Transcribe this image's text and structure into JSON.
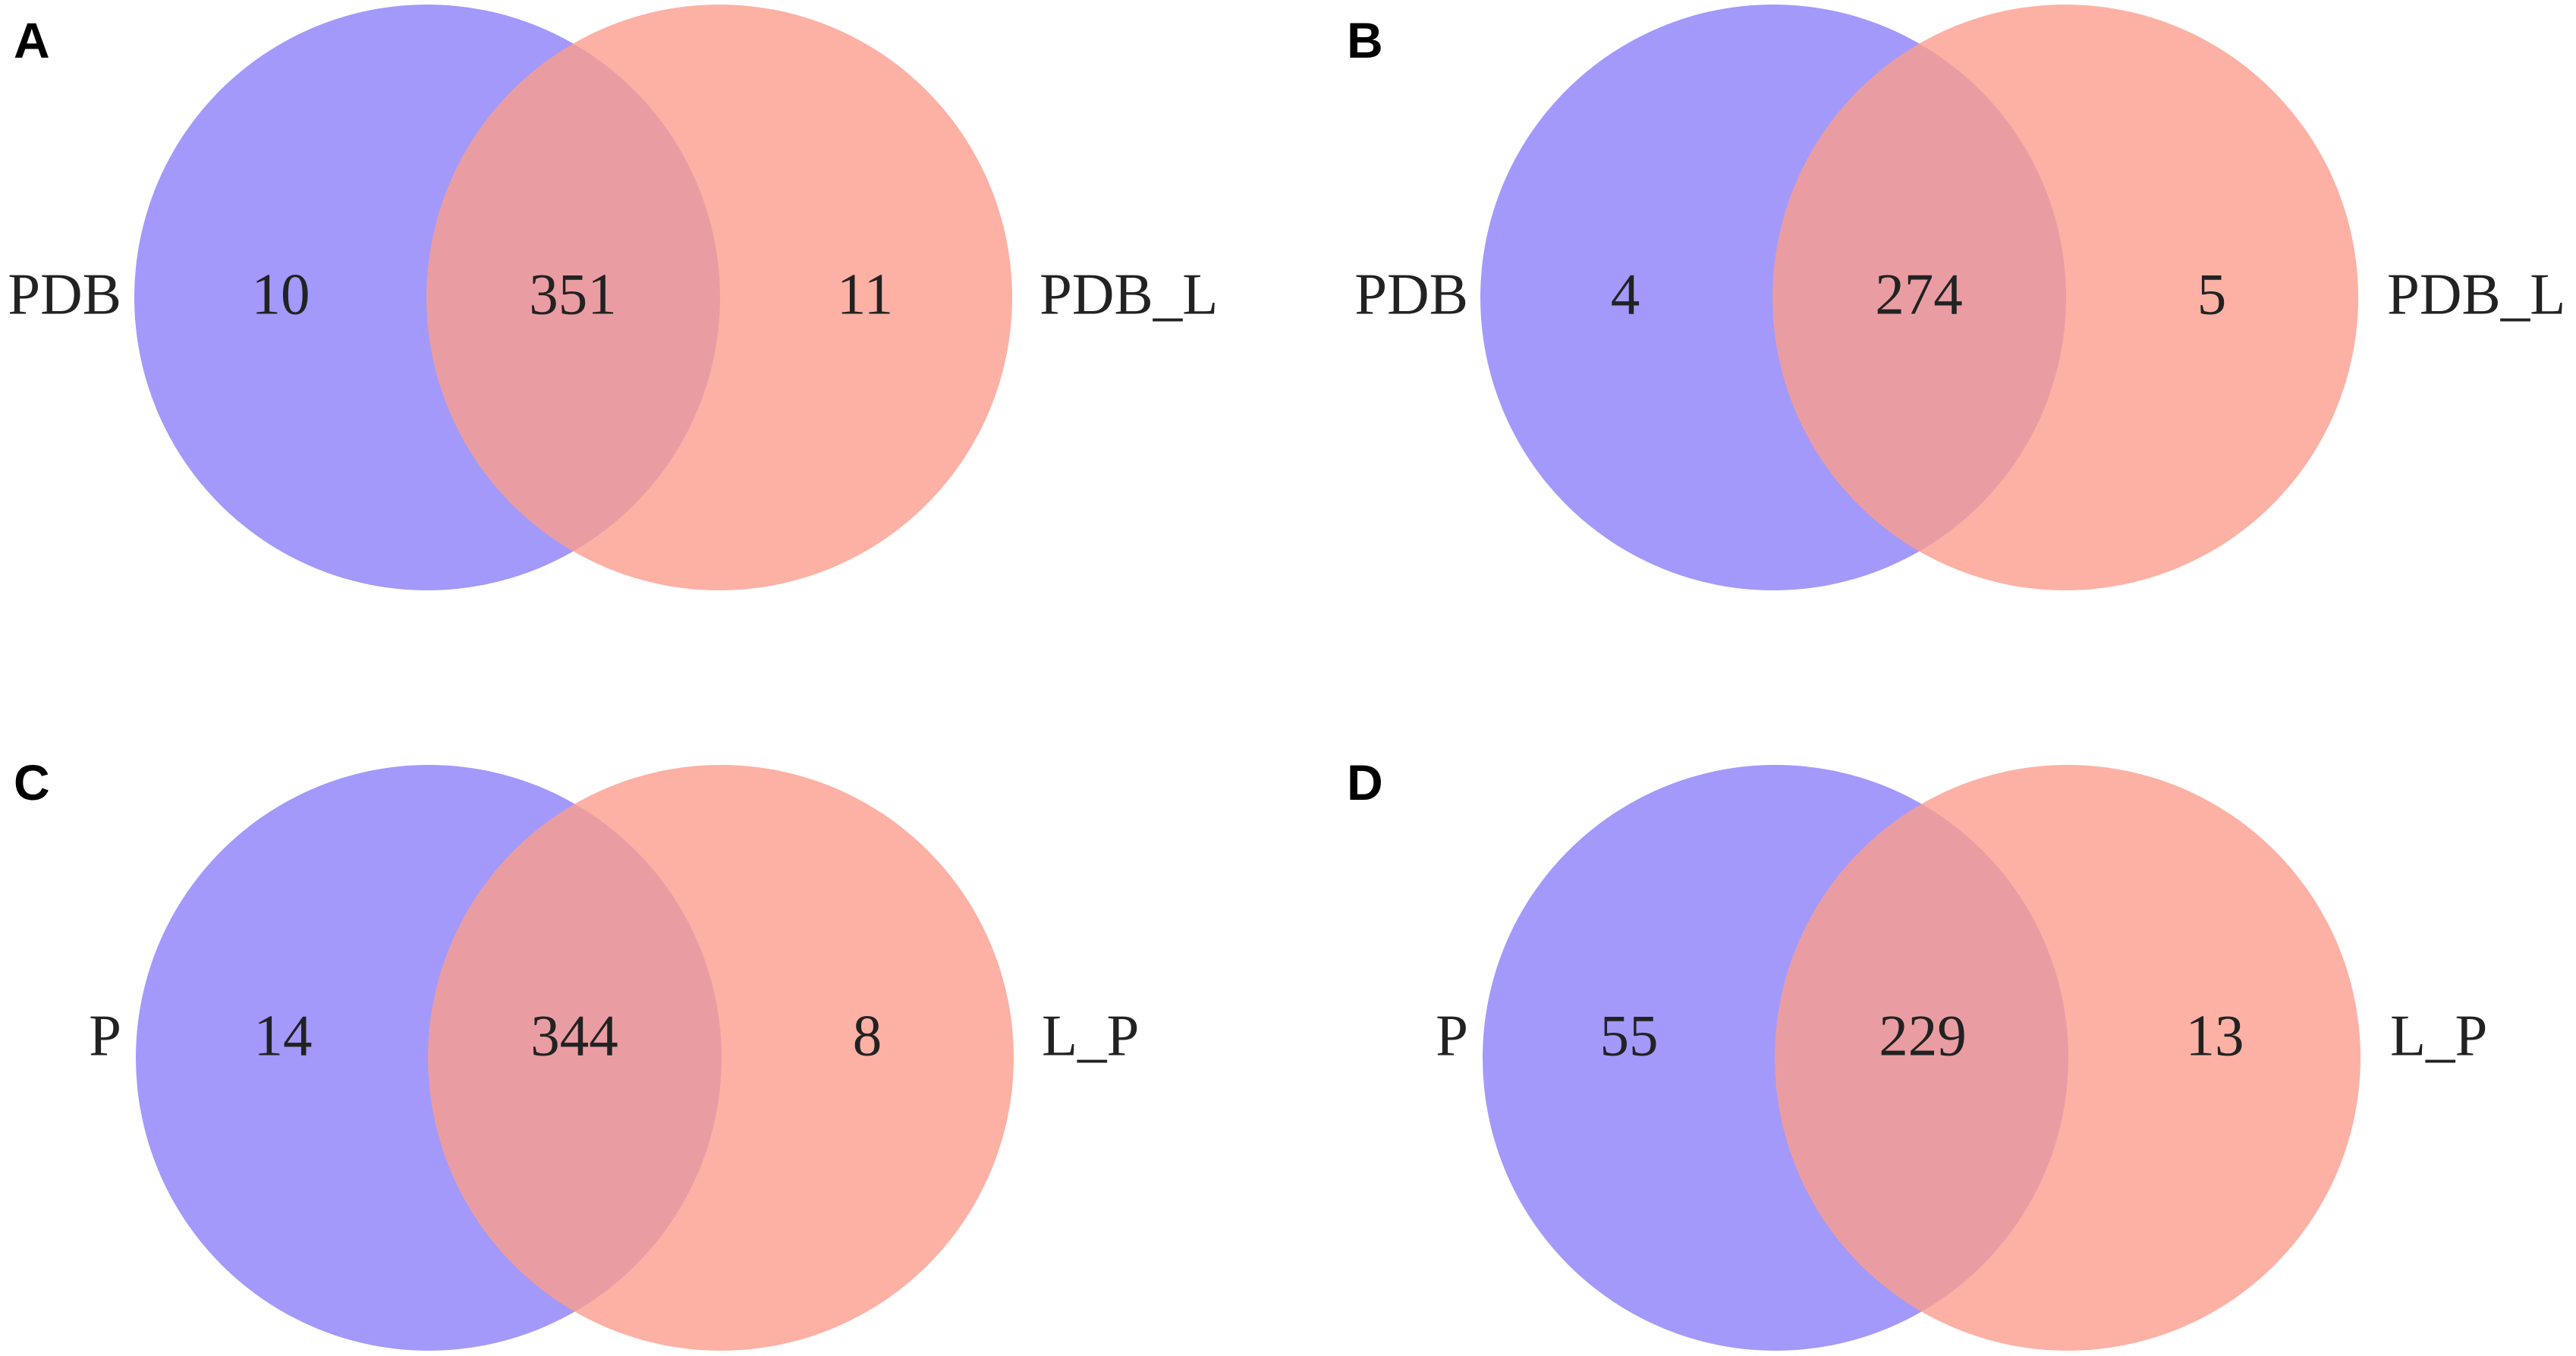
{
  "colors": {
    "set_a": "#8b7ffa",
    "set_b": "#fb9d8d",
    "set_a_opacity": 0.8,
    "set_b_opacity": 0.8
  },
  "panels": [
    {
      "letter": "A",
      "left_label": "PDB",
      "right_label": "PDB_L",
      "left_only": "10",
      "intersection": "351",
      "right_only": "11"
    },
    {
      "letter": "B",
      "left_label": "PDB",
      "right_label": "PDB_L",
      "left_only": "4",
      "intersection": "274",
      "right_only": "5"
    },
    {
      "letter": "C",
      "left_label": "P",
      "right_label": "L_P",
      "left_only": "14",
      "intersection": "344",
      "right_only": "8"
    },
    {
      "letter": "D",
      "left_label": "P",
      "right_label": "L_P",
      "left_only": "55",
      "intersection": "229",
      "right_only": "13"
    }
  ]
}
